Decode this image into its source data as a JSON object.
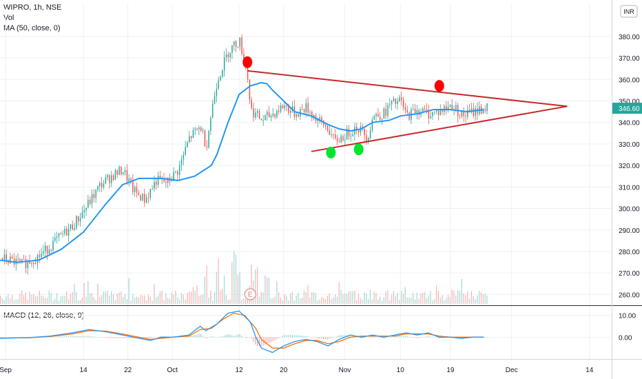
{
  "legend": {
    "symbol": "WIPRO, 1h, NSE",
    "volume": "Vol",
    "ma": "MA (50, close, 0)",
    "macd": "MACD (12, 26, close, 9)"
  },
  "currency": "INR",
  "colors": {
    "up": "#26a69a",
    "down": "#ef5350",
    "ma": "#2196f3",
    "macd": "#2196f3",
    "signal": "#ff6d00",
    "trendline": "#c62828",
    "price_tag": "#26a69a"
  },
  "chart_data": {
    "type": "candlestick",
    "instrument": "WIPRO",
    "timeframe": "1h",
    "exchange": "NSE",
    "price_axis": {
      "ylim": [
        255,
        395
      ],
      "ticks": [
        "380.00",
        "370.00",
        "360.00",
        "350.00",
        "340.00",
        "330.00",
        "320.00",
        "310.00",
        "300.00",
        "290.00",
        "280.00",
        "270.00",
        "260.00"
      ]
    },
    "macd_axis": {
      "ylim": [
        -10,
        14
      ],
      "ticks": [
        "10.00",
        "0.00"
      ]
    },
    "x_ticks": [
      "Sep",
      "14",
      "22",
      "Oct",
      "12",
      "20",
      "Nov",
      "10",
      "19",
      "Dec",
      "14"
    ],
    "x_tick_days": [
      0,
      14,
      22,
      30,
      42,
      50,
      61,
      71,
      80,
      91,
      105
    ],
    "x_range_days": [
      -1,
      109
    ],
    "last_price": "346.60",
    "last_price_value": 346.6,
    "ma_path": [
      [
        -1,
        276
      ],
      [
        2,
        275
      ],
      [
        6,
        276
      ],
      [
        10,
        281
      ],
      [
        14,
        289
      ],
      [
        18,
        302
      ],
      [
        21,
        311
      ],
      [
        24,
        314
      ],
      [
        28,
        314
      ],
      [
        31,
        313
      ],
      [
        34,
        315
      ],
      [
        37,
        320
      ],
      [
        38,
        325
      ],
      [
        40,
        340
      ],
      [
        42,
        353
      ],
      [
        44,
        357
      ],
      [
        46,
        358.5
      ],
      [
        47,
        358
      ],
      [
        48,
        355
      ],
      [
        50,
        350
      ],
      [
        52,
        345
      ],
      [
        55,
        343
      ],
      [
        58,
        339
      ],
      [
        60,
        337
      ],
      [
        62,
        336
      ],
      [
        64,
        337
      ],
      [
        66,
        340
      ],
      [
        69,
        341
      ],
      [
        71,
        343
      ],
      [
        74,
        344
      ],
      [
        77,
        346
      ],
      [
        80,
        346
      ],
      [
        83,
        345
      ],
      [
        86,
        346
      ]
    ],
    "price_path": [
      [
        -1,
        277
      ],
      [
        3,
        274
      ],
      [
        6,
        278
      ],
      [
        9,
        285
      ],
      [
        12,
        292
      ],
      [
        14,
        299
      ],
      [
        17,
        311
      ],
      [
        19,
        315
      ],
      [
        21,
        318
      ],
      [
        23,
        308
      ],
      [
        25,
        304
      ],
      [
        27,
        313
      ],
      [
        29,
        312
      ],
      [
        31,
        318
      ],
      [
        33,
        333
      ],
      [
        35,
        338
      ],
      [
        36,
        329
      ],
      [
        37,
        346
      ],
      [
        38,
        360
      ],
      [
        40,
        373
      ],
      [
        41,
        376
      ],
      [
        42,
        378
      ],
      [
        43,
        367
      ],
      [
        43.5,
        360
      ],
      [
        44,
        346
      ],
      [
        46,
        341
      ],
      [
        48,
        344
      ],
      [
        50,
        348
      ],
      [
        52,
        344
      ],
      [
        54,
        347
      ],
      [
        56,
        341
      ],
      [
        58,
        337
      ],
      [
        59,
        331
      ],
      [
        61,
        334
      ],
      [
        63,
        338
      ],
      [
        64,
        336
      ],
      [
        65,
        333
      ],
      [
        66,
        343
      ],
      [
        68,
        344
      ],
      [
        69,
        348
      ],
      [
        71,
        350
      ],
      [
        72,
        343
      ],
      [
        74,
        346
      ],
      [
        76,
        344
      ],
      [
        78,
        345
      ],
      [
        80,
        348
      ],
      [
        81,
        346
      ],
      [
        82,
        343
      ],
      [
        84,
        345
      ],
      [
        86,
        346.6
      ]
    ],
    "volume_scale_max": 100,
    "volume_spikes": [
      [
        36,
        60
      ],
      [
        38,
        70
      ],
      [
        39,
        60
      ],
      [
        41,
        75
      ],
      [
        42,
        55
      ],
      [
        44,
        85
      ],
      [
        45,
        50
      ],
      [
        47,
        45
      ],
      [
        54,
        25
      ],
      [
        60,
        30
      ]
    ],
    "macd_path": [
      [
        -1,
        -0.5
      ],
      [
        4,
        -0.2
      ],
      [
        8,
        0.5
      ],
      [
        12,
        2
      ],
      [
        15,
        3.5
      ],
      [
        18,
        2.5
      ],
      [
        21,
        1
      ],
      [
        24,
        -0.5
      ],
      [
        26,
        -1.5
      ],
      [
        28,
        0
      ],
      [
        30,
        0
      ],
      [
        33,
        1
      ],
      [
        35,
        5
      ],
      [
        36,
        3
      ],
      [
        38,
        6
      ],
      [
        40,
        11
      ],
      [
        42,
        12
      ],
      [
        44,
        7
      ],
      [
        45,
        0
      ],
      [
        46,
        -5
      ],
      [
        48,
        -7
      ],
      [
        50,
        -4
      ],
      [
        52,
        -2
      ],
      [
        54,
        -1
      ],
      [
        56,
        -2
      ],
      [
        58,
        -4
      ],
      [
        60,
        -1
      ],
      [
        62,
        1
      ],
      [
        64,
        0
      ],
      [
        66,
        1
      ],
      [
        68,
        0
      ],
      [
        70,
        1
      ],
      [
        72,
        2
      ],
      [
        74,
        1
      ],
      [
        76,
        2
      ],
      [
        78,
        0
      ],
      [
        80,
        0
      ],
      [
        82,
        -0.5
      ],
      [
        84,
        0
      ],
      [
        86,
        0
      ]
    ],
    "signal_path": [
      [
        -1,
        -0.4
      ],
      [
        4,
        -0.3
      ],
      [
        8,
        0.3
      ],
      [
        12,
        1.5
      ],
      [
        15,
        3
      ],
      [
        18,
        2.8
      ],
      [
        21,
        1.5
      ],
      [
        24,
        0
      ],
      [
        26,
        -1
      ],
      [
        28,
        -0.5
      ],
      [
        30,
        0
      ],
      [
        33,
        0.5
      ],
      [
        35,
        3.5
      ],
      [
        37,
        4
      ],
      [
        39,
        8
      ],
      [
        41,
        11
      ],
      [
        43,
        10
      ],
      [
        45,
        4
      ],
      [
        46,
        -1
      ],
      [
        48,
        -5
      ],
      [
        50,
        -5
      ],
      [
        52,
        -3
      ],
      [
        54,
        -1.5
      ],
      [
        56,
        -1.5
      ],
      [
        58,
        -3
      ],
      [
        60,
        -2
      ],
      [
        62,
        0
      ],
      [
        64,
        0.5
      ],
      [
        66,
        0.5
      ],
      [
        68,
        0.5
      ],
      [
        70,
        0.5
      ],
      [
        72,
        1.5
      ],
      [
        74,
        1.5
      ],
      [
        76,
        1.5
      ],
      [
        78,
        0.5
      ],
      [
        80,
        0
      ],
      [
        82,
        0
      ],
      [
        84,
        0
      ],
      [
        86,
        0
      ]
    ],
    "triangle": {
      "upper": [
        [
          43.5,
          364
        ],
        [
          101,
          347.5
        ]
      ],
      "lower": [
        [
          55,
          326.5
        ],
        [
          101,
          347.5
        ]
      ]
    },
    "markers": [
      {
        "color": "red",
        "day": 43.5,
        "price": 368
      },
      {
        "color": "red",
        "day": 78,
        "price": 357
      },
      {
        "color": "green",
        "day": 58.5,
        "price": 326
      },
      {
        "color": "green",
        "day": 63.5,
        "price": 327.5
      }
    ],
    "earnings_label": "E",
    "earnings_day": 44
  }
}
